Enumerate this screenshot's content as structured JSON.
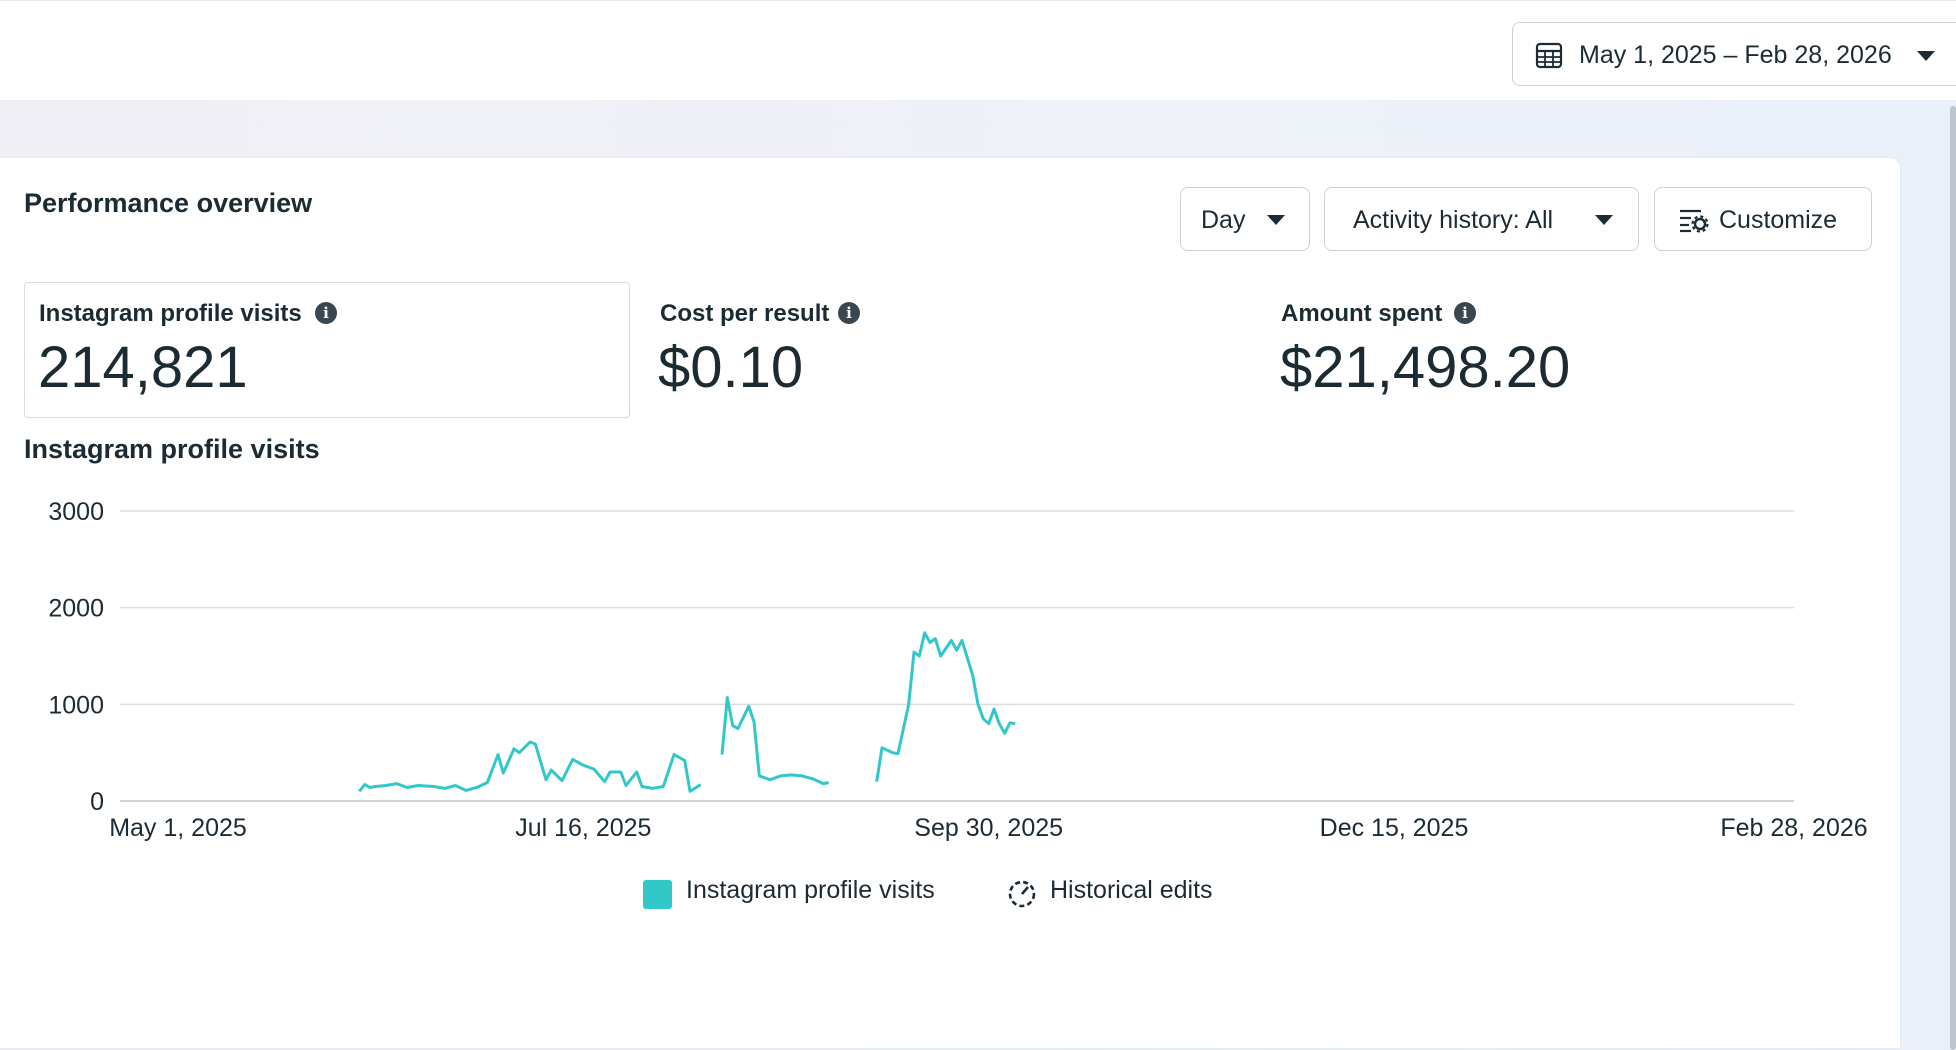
{
  "header": {
    "date_range": "May 1, 2025 – Feb 28, 2026"
  },
  "overview": {
    "title": "Performance overview",
    "controls": {
      "granularity": "Day",
      "activity": "Activity history: All",
      "customize": "Customize"
    }
  },
  "kpis": [
    {
      "label": "Instagram profile visits",
      "value": "214,821"
    },
    {
      "label": "Cost per result",
      "value": "$0.10"
    },
    {
      "label": "Amount spent",
      "value": "$21,498.20"
    }
  ],
  "colors": {
    "series": "#32c8c8",
    "grid": "#d9dde1",
    "text": "#1c2b33"
  },
  "chart_data": {
    "type": "line",
    "title": "Instagram profile visits",
    "xlabel": "",
    "ylabel": "",
    "ylim": [
      0,
      3000
    ],
    "yticks": [
      "3000",
      "2000",
      "1000",
      "0"
    ],
    "xticks": [
      "May 1, 2025",
      "Jul 16, 2025",
      "Sep 30, 2025",
      "Dec 15, 2025",
      "Feb 28, 2026"
    ],
    "xlim": [
      "2025-05-01",
      "2026-02-28"
    ],
    "legend": [
      {
        "name": "Instagram profile visits",
        "icon": "teal-square"
      },
      {
        "name": "Historical edits",
        "icon": "history-icon"
      }
    ],
    "legend_position": "bottom",
    "grid": true,
    "series": [
      {
        "name": "Instagram profile visits",
        "segments": [
          [
            [
              "2025-06-04",
              100
            ],
            [
              "2025-06-05",
              170
            ],
            [
              "2025-06-06",
              140
            ],
            [
              "2025-06-07",
              150
            ],
            [
              "2025-06-09",
              160
            ],
            [
              "2025-06-11",
              180
            ],
            [
              "2025-06-13",
              140
            ],
            [
              "2025-06-15",
              160
            ],
            [
              "2025-06-18",
              150
            ],
            [
              "2025-06-20",
              130
            ],
            [
              "2025-06-22",
              160
            ],
            [
              "2025-06-24",
              110
            ],
            [
              "2025-06-26",
              140
            ],
            [
              "2025-06-28",
              190
            ],
            [
              "2025-06-30",
              480
            ],
            [
              "2025-07-01",
              290
            ],
            [
              "2025-07-03",
              540
            ],
            [
              "2025-07-04",
              500
            ],
            [
              "2025-07-06",
              610
            ],
            [
              "2025-07-07",
              590
            ],
            [
              "2025-07-09",
              220
            ],
            [
              "2025-07-10",
              320
            ],
            [
              "2025-07-12",
              210
            ],
            [
              "2025-07-14",
              430
            ],
            [
              "2025-07-16",
              370
            ],
            [
              "2025-07-18",
              330
            ],
            [
              "2025-07-20",
              200
            ],
            [
              "2025-07-21",
              300
            ],
            [
              "2025-07-23",
              300
            ],
            [
              "2025-07-24",
              160
            ],
            [
              "2025-07-26",
              300
            ],
            [
              "2025-07-27",
              150
            ],
            [
              "2025-07-29",
              130
            ],
            [
              "2025-07-31",
              150
            ],
            [
              "2025-08-02",
              480
            ],
            [
              "2025-08-04",
              420
            ],
            [
              "2025-08-05",
              100
            ],
            [
              "2025-08-07",
              170
            ]
          ],
          [
            [
              "2025-08-11",
              480
            ],
            [
              "2025-08-12",
              1070
            ],
            [
              "2025-08-13",
              780
            ],
            [
              "2025-08-14",
              750
            ],
            [
              "2025-08-16",
              980
            ],
            [
              "2025-08-17",
              820
            ],
            [
              "2025-08-18",
              260
            ],
            [
              "2025-08-20",
              220
            ],
            [
              "2025-08-22",
              260
            ],
            [
              "2025-08-24",
              270
            ],
            [
              "2025-08-26",
              260
            ],
            [
              "2025-08-28",
              230
            ],
            [
              "2025-08-30",
              180
            ],
            [
              "2025-08-31",
              190
            ]
          ],
          [
            [
              "2025-09-09",
              200
            ],
            [
              "2025-09-10",
              550
            ],
            [
              "2025-09-12",
              500
            ],
            [
              "2025-09-13",
              490
            ],
            [
              "2025-09-15",
              1000
            ],
            [
              "2025-09-16",
              1540
            ],
            [
              "2025-09-17",
              1500
            ],
            [
              "2025-09-18",
              1740
            ],
            [
              "2025-09-19",
              1640
            ],
            [
              "2025-09-20",
              1680
            ],
            [
              "2025-09-21",
              1500
            ],
            [
              "2025-09-23",
              1660
            ],
            [
              "2025-09-24",
              1560
            ],
            [
              "2025-09-25",
              1660
            ],
            [
              "2025-09-27",
              1300
            ],
            [
              "2025-09-28",
              1000
            ],
            [
              "2025-09-29",
              850
            ],
            [
              "2025-09-30",
              800
            ],
            [
              "2025-10-01",
              950
            ],
            [
              "2025-10-02",
              800
            ],
            [
              "2025-10-03",
              700
            ],
            [
              "2025-10-04",
              810
            ],
            [
              "2025-10-05",
              800
            ]
          ]
        ]
      }
    ]
  }
}
